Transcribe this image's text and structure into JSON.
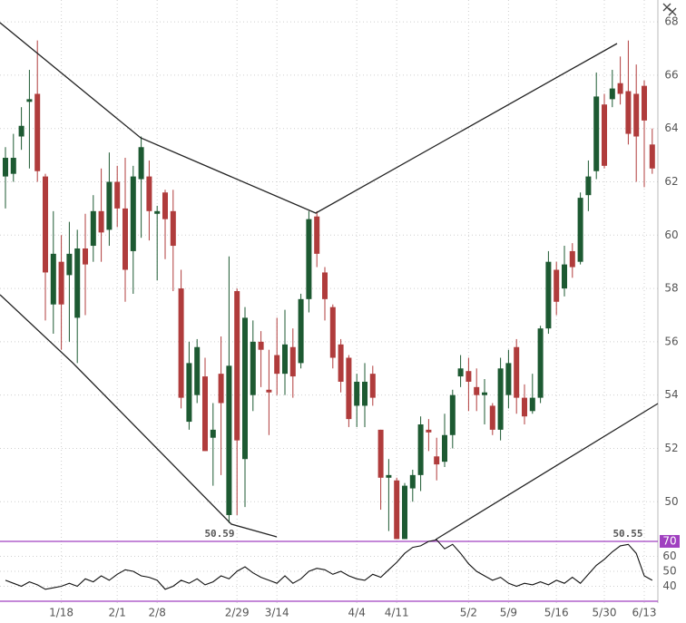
{
  "chart_data": [
    {
      "type": "candlestick",
      "categories": [
        null,
        null,
        null,
        null,
        null,
        null,
        null,
        "1/18",
        null,
        null,
        null,
        null,
        null,
        null,
        "2/1",
        null,
        null,
        null,
        null,
        "2/8",
        null,
        null,
        null,
        null,
        null,
        null,
        null,
        null,
        null,
        "2/29",
        null,
        null,
        null,
        null,
        "3/14",
        null,
        null,
        null,
        null,
        null,
        null,
        null,
        null,
        null,
        "4/4",
        null,
        null,
        null,
        null,
        "4/11",
        null,
        null,
        null,
        null,
        null,
        null,
        null,
        null,
        "5/2",
        null,
        null,
        null,
        null,
        "5/9",
        null,
        null,
        null,
        null,
        null,
        "5/16",
        null,
        null,
        null,
        null,
        null,
        "5/30",
        null,
        null,
        null,
        null,
        "6/13",
        null
      ],
      "open": [
        62.2,
        62.3,
        63.7,
        65.0,
        65.3,
        62.2,
        57.4,
        59.0,
        58.5,
        56.9,
        59.5,
        59.6,
        60.9,
        60.2,
        62.0,
        61.0,
        59.4,
        62.1,
        62.2,
        60.8,
        61.6,
        60.9,
        58.0,
        53.0,
        54.0,
        54.7,
        52.4,
        54.8,
        49.5,
        57.9,
        51.6,
        54.0,
        56.0,
        54.2,
        55.5,
        54.8,
        55.8,
        55.2,
        57.6,
        60.7,
        58.6,
        57.3,
        55.9,
        55.4,
        53.6,
        53.6,
        54.8,
        52.7,
        50.9,
        50.8,
        48.6,
        50.5,
        51.0,
        52.7,
        51.7,
        51.5,
        52.5,
        54.7,
        54.9,
        54.3,
        54.0,
        53.6,
        52.7,
        54.0,
        55.8,
        53.9,
        53.4,
        53.9,
        56.5,
        58.7,
        58.0,
        59.4,
        59.0,
        61.5,
        62.4,
        64.9,
        65.1,
        65.7,
        65.4,
        65.3,
        65.6,
        63.4
      ],
      "high": [
        63.3,
        63.8,
        64.8,
        66.2,
        67.3,
        62.3,
        60.9,
        60.0,
        60.5,
        60.2,
        60.8,
        61.5,
        62.5,
        63.1,
        62.6,
        62.9,
        62.6,
        63.7,
        62.8,
        61.1,
        61.7,
        61.7,
        58.7,
        56.0,
        56.1,
        55.4,
        53.7,
        56.2,
        59.2,
        58.0,
        57.3,
        56.8,
        56.4,
        55.7,
        56.9,
        57.2,
        56.5,
        57.8,
        60.9,
        60.9,
        58.8,
        57.4,
        56.1,
        55.5,
        54.8,
        55.2,
        55.1,
        52.7,
        51.6,
        50.9,
        50.7,
        51.2,
        53.2,
        53.1,
        52.4,
        53.3,
        54.2,
        55.5,
        55.4,
        55.0,
        54.6,
        53.7,
        55.4,
        55.7,
        56.1,
        54.4,
        54.8,
        56.6,
        59.4,
        59.0,
        59.6,
        59.7,
        61.6,
        62.8,
        66.1,
        65.3,
        66.2,
        66.7,
        67.3,
        66.4,
        65.8,
        64.0
      ],
      "low": [
        61.0,
        62.0,
        63.2,
        62.5,
        62.0,
        56.8,
        56.3,
        55.7,
        56.0,
        55.2,
        57.0,
        59.0,
        59.0,
        59.6,
        60.3,
        57.5,
        57.8,
        59.9,
        59.8,
        58.3,
        59.1,
        57.9,
        53.5,
        52.7,
        53.7,
        51.9,
        50.6,
        51.0,
        49.2,
        49.5,
        49.8,
        53.4,
        54.3,
        52.5,
        54.0,
        54.0,
        53.9,
        55.0,
        57.1,
        58.8,
        56.8,
        55.0,
        54.1,
        52.8,
        52.8,
        52.8,
        53.6,
        49.7,
        48.9,
        48.6,
        48.6,
        50.0,
        50.4,
        51.9,
        50.8,
        51.3,
        52.0,
        54.3,
        53.4,
        53.4,
        52.9,
        52.5,
        52.3,
        53.5,
        53.3,
        52.9,
        53.3,
        53.7,
        56.3,
        57.0,
        57.7,
        58.4,
        58.9,
        60.9,
        62.1,
        62.5,
        64.8,
        64.9,
        63.4,
        62.0,
        61.8,
        62.3
      ],
      "close": [
        62.9,
        62.9,
        64.1,
        65.1,
        62.4,
        58.6,
        59.3,
        57.4,
        59.3,
        59.5,
        58.9,
        60.9,
        60.1,
        62.0,
        61.0,
        58.7,
        62.2,
        63.3,
        60.9,
        60.9,
        60.6,
        59.6,
        53.9,
        55.2,
        55.8,
        51.9,
        52.7,
        53.7,
        55.1,
        52.3,
        56.9,
        56.0,
        55.7,
        54.1,
        54.8,
        55.9,
        54.7,
        57.6,
        60.6,
        59.3,
        57.6,
        55.4,
        54.5,
        53.1,
        54.5,
        54.5,
        53.9,
        50.9,
        51.0,
        48.6,
        50.6,
        51.0,
        52.9,
        52.6,
        51.4,
        52.5,
        54.0,
        55.0,
        54.5,
        54.0,
        54.1,
        52.7,
        55.0,
        55.2,
        53.9,
        53.2,
        53.9,
        56.5,
        59.0,
        57.5,
        58.9,
        58.8,
        61.4,
        62.2,
        65.2,
        62.6,
        65.5,
        65.3,
        63.8,
        63.7,
        64.3,
        62.5
      ],
      "up_color": "#1d5a32",
      "down_color": "#b03c3c",
      "ylim": [
        48.58,
        68.82
      ],
      "yticks": [
        50,
        52,
        54,
        56,
        58,
        60,
        62,
        64,
        66,
        68
      ],
      "grid": true,
      "annotations": [
        "50.59",
        "50.55"
      ]
    },
    {
      "type": "line",
      "values": [
        44,
        42,
        40,
        43,
        41,
        38,
        39,
        40,
        42,
        40,
        45,
        43,
        47,
        44,
        48,
        51,
        50,
        47,
        46,
        44,
        38,
        40,
        44,
        42,
        45,
        41,
        43,
        47,
        45,
        50,
        53,
        49,
        46,
        44,
        42,
        47,
        42,
        45,
        50,
        52,
        51,
        48,
        50,
        47,
        45,
        44,
        48,
        46,
        51,
        56,
        62,
        66,
        67,
        70,
        71,
        65,
        68,
        62,
        55,
        50,
        47,
        44,
        46,
        42,
        40,
        42,
        41,
        43,
        41,
        44,
        42,
        46,
        42,
        48,
        54,
        58,
        63,
        67,
        68,
        62,
        47,
        44
      ],
      "color": "#111111",
      "ylim": [
        28.8,
        71.2
      ],
      "yticks": [
        40,
        50,
        60,
        70
      ],
      "levels": [
        70,
        30
      ],
      "level_color": "#a040c0"
    }
  ]
}
